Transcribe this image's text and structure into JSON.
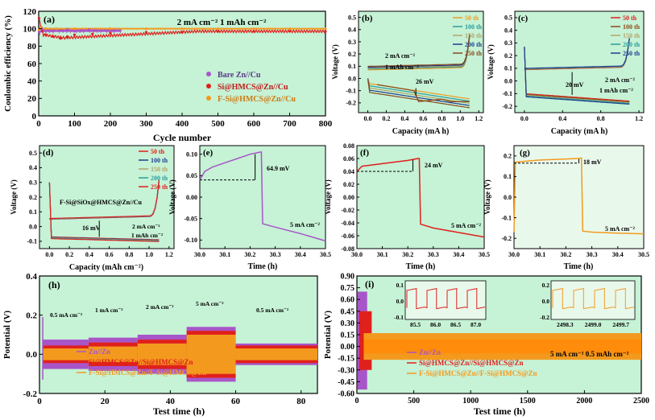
{
  "colors": {
    "bare": "#a855c9",
    "si": "#e0201c",
    "fsi": "#f39a1e",
    "teal": "#2a9d9b",
    "olive": "#b3a46a",
    "navy": "#1f3f8f",
    "brown": "#8a4a1a",
    "plot_bg": "#c6f2d6",
    "plot_bg2": "#e8f9ec"
  },
  "chart_data": [
    {
      "id": "a",
      "type": "line",
      "panel_label": "(a)",
      "title": "2 mA cm⁻²  1 mAh cm⁻²",
      "xlabel": "Cycle number",
      "ylabel": "Coulombic efficiency (%)",
      "xlim": [
        0,
        800
      ],
      "ylim": [
        0,
        120
      ],
      "xticks": [
        0,
        100,
        200,
        300,
        400,
        500,
        600,
        700,
        800
      ],
      "yticks": [
        0,
        20,
        40,
        60,
        80,
        100,
        120
      ],
      "series": [
        {
          "name": "Bare Zn//Cu",
          "color_key": "bare",
          "x": [
            1,
            5,
            10,
            20,
            40,
            60,
            80,
            100,
            120,
            140,
            160,
            200
          ],
          "y": [
            96,
            100,
            99,
            98,
            97,
            98,
            99,
            97,
            98,
            99,
            98,
            99
          ]
        },
        {
          "name": "Si@HMCS@Zn//Cu",
          "color_key": "si",
          "x": [
            1,
            10,
            20,
            40,
            60,
            80,
            100,
            150,
            200,
            300,
            400,
            500,
            600,
            700,
            800
          ],
          "y": [
            112,
            97,
            93,
            91,
            89,
            91,
            93,
            94,
            95,
            96,
            96,
            97,
            97,
            97,
            97
          ]
        },
        {
          "name": "F-Si@HMCS@Zn//Cu",
          "color_key": "fsi",
          "x": [
            1,
            5,
            20,
            50,
            100,
            200,
            300,
            400,
            500,
            600,
            700,
            800
          ],
          "y": [
            99,
            101,
            100,
            100,
            100,
            100,
            100,
            100,
            100,
            100,
            100,
            100
          ]
        }
      ]
    },
    {
      "id": "b",
      "type": "line",
      "panel_label": "(b)",
      "xlabel": "Capacity (mA h)",
      "ylabel": "Voltage (V)",
      "xlim": [
        -0.1,
        1.25
      ],
      "ylim": [
        -0.28,
        0.55
      ],
      "xticks": [
        0.0,
        0.2,
        0.4,
        0.6,
        0.8,
        1.0,
        1.2
      ],
      "yticks": [
        -0.2,
        -0.1,
        0.0,
        0.1,
        0.2,
        0.3,
        0.4,
        0.5
      ],
      "annotations": [
        "2 mA cm⁻²",
        "1 mAh cm⁻²",
        "26 mV"
      ],
      "legend": [
        "50 th",
        "100 th",
        "150 th",
        "200 th",
        "250 th"
      ],
      "legend_color_keys": [
        "fsi",
        "teal",
        "olive",
        "navy",
        "brown"
      ]
    },
    {
      "id": "c",
      "type": "line",
      "panel_label": "(c)",
      "xlabel": "Capacity (mA h)",
      "ylabel": "Voltage (V)",
      "xlim": [
        -0.1,
        1.25
      ],
      "ylim": [
        -0.25,
        0.55
      ],
      "xticks": [
        0.0,
        0.4,
        0.8,
        1.2
      ],
      "yticks": [
        -0.2,
        -0.1,
        0.0,
        0.1,
        0.2,
        0.3,
        0.4,
        0.5
      ],
      "annotations": [
        "20 mV",
        "2 mA cm⁻²",
        "1 mAh cm⁻²"
      ],
      "legend": [
        "50 th",
        "100 th",
        "150 th",
        "200 th",
        "250 th"
      ],
      "legend_color_keys": [
        "si",
        "brown",
        "olive",
        "teal",
        "navy"
      ]
    },
    {
      "id": "d",
      "type": "line",
      "panel_label": "(d)",
      "xlabel": "Capacity (mAh cm⁻²)",
      "ylabel": "Voltage (V)",
      "xlim": [
        -0.1,
        1.25
      ],
      "ylim": [
        -0.15,
        0.55
      ],
      "xticks": [
        0.0,
        0.2,
        0.4,
        0.6,
        0.8,
        1.0,
        1.2
      ],
      "yticks": [
        -0.1,
        0.0,
        0.1,
        0.2,
        0.3,
        0.4,
        0.5
      ],
      "annotations": [
        "F-Si@SiOx@HMCS@Zn//Cu",
        "16 mV",
        "2 mA cm⁻²",
        "1 mAh cm⁻²"
      ],
      "legend": [
        "50 th",
        "100 th",
        "150 th",
        "200 th",
        "250 th"
      ],
      "legend_color_keys": [
        "si",
        "navy",
        "olive",
        "teal",
        "si"
      ]
    },
    {
      "id": "e",
      "type": "line",
      "panel_label": "(e)",
      "xlabel": "Time (h)",
      "ylabel": "Voltage (V)",
      "xlim": [
        30.0,
        30.5
      ],
      "ylim": [
        -0.12,
        0.12
      ],
      "xticks": [
        30.0,
        30.1,
        30.2,
        30.3,
        30.4,
        30.5
      ],
      "yticks": [
        -0.1,
        -0.05,
        0.0,
        0.05,
        0.1
      ],
      "annotations": [
        "64.9 mV",
        "5 mA cm⁻²"
      ],
      "series": [
        {
          "name": "Zn//Zn",
          "color_key": "bare",
          "x": [
            30.0,
            30.02,
            30.05,
            30.1,
            30.15,
            30.2,
            30.24,
            30.245,
            30.25,
            30.3,
            30.4,
            30.5
          ],
          "y": [
            0.04,
            0.06,
            0.07,
            0.08,
            0.09,
            0.1,
            0.105,
            0.105,
            -0.062,
            -0.07,
            -0.085,
            -0.102
          ]
        }
      ]
    },
    {
      "id": "f",
      "type": "line",
      "panel_label": "(f)",
      "xlabel": "Time (h)",
      "ylabel": "Voltage (V)",
      "xlim": [
        30.0,
        30.5
      ],
      "ylim": [
        -0.08,
        0.08
      ],
      "xticks": [
        30.0,
        30.1,
        30.2,
        30.3,
        30.4,
        30.5
      ],
      "yticks": [
        -0.08,
        -0.06,
        -0.04,
        -0.02,
        0.0,
        0.02,
        0.04,
        0.06,
        0.08
      ],
      "annotations": [
        "24 mV",
        "5 mA cm⁻²"
      ],
      "series": [
        {
          "name": "Si@HMCS@Zn//Si@HMCS@Zn",
          "color_key": "si",
          "x": [
            30.0,
            30.02,
            30.1,
            30.2,
            30.24,
            30.245,
            30.25,
            30.3,
            30.4,
            30.5
          ],
          "y": [
            0.04,
            0.048,
            0.052,
            0.057,
            0.06,
            0.06,
            -0.042,
            -0.048,
            -0.055,
            -0.062
          ]
        }
      ]
    },
    {
      "id": "g",
      "type": "line",
      "panel_label": "(g)",
      "xlabel": "Time (h)",
      "ylabel": "Voltage (V)",
      "xlim": [
        30.0,
        30.5
      ],
      "ylim": [
        -0.25,
        0.25
      ],
      "xticks": [
        30.0,
        30.1,
        30.2,
        30.3,
        30.4,
        30.5
      ],
      "yticks": [
        -0.2,
        -0.1,
        0.0,
        0.1,
        0.2
      ],
      "annotations": [
        "18 mV",
        "5 mA cm⁻²"
      ],
      "series": [
        {
          "name": "F-Si@HMCS@Zn//F-Si@HMCS@Zn",
          "color_key": "fsi",
          "x": [
            30.0,
            30.005,
            30.05,
            30.1,
            30.2,
            30.25,
            30.26,
            30.265,
            30.3,
            30.4,
            30.5
          ],
          "y": [
            -0.17,
            0.17,
            0.175,
            0.18,
            0.185,
            0.188,
            0.19,
            -0.165,
            -0.17,
            -0.175,
            -0.178
          ]
        }
      ]
    },
    {
      "id": "h",
      "type": "line",
      "panel_label": "(h)",
      "xlabel": "Test time (h)",
      "ylabel": "Potential (V)",
      "xlim": [
        0,
        85
      ],
      "ylim": [
        -0.2,
        0.4
      ],
      "xticks": [
        0,
        20,
        40,
        60,
        80
      ],
      "yticks": [
        -0.2,
        0.0,
        0.2,
        0.4
      ],
      "annotations": [
        "0.5 mA cm⁻²",
        "1 mA cm⁻²",
        "2 mA cm⁻²",
        "5 mA cm⁻²",
        "0.5 mA cm⁻²"
      ],
      "legend": [
        "Zn//Zn",
        "Si@HMCS@Zn//Si@HMCS@Zn",
        "F-Si@HMCS@Zn//F-Si@HMCS@Zn"
      ],
      "legend_color_keys": [
        "bare",
        "si",
        "fsi"
      ],
      "bands": [
        {
          "color_key": "bare",
          "x": [
            0,
            15,
            30,
            45,
            60,
            85
          ],
          "amp": [
            0.075,
            0.085,
            0.1,
            0.14,
            0.055
          ]
        },
        {
          "color_key": "si",
          "x": [
            0,
            15,
            30,
            45,
            60,
            85
          ],
          "amp": [
            0.045,
            0.06,
            0.075,
            0.12,
            0.045
          ]
        },
        {
          "color_key": "fsi",
          "x": [
            0,
            15,
            30,
            45,
            60,
            85
          ],
          "amp": [
            0.03,
            0.04,
            0.055,
            0.1,
            0.03
          ]
        }
      ]
    },
    {
      "id": "i",
      "type": "line",
      "panel_label": "(i)",
      "xlabel": "Test time (h)",
      "ylabel": "Potential (V)",
      "xlim": [
        0,
        2500
      ],
      "ylim": [
        -0.6,
        0.9
      ],
      "xticks": [
        0,
        500,
        1000,
        1500,
        2000,
        2500
      ],
      "yticks": [
        -0.6,
        -0.45,
        -0.3,
        -0.15,
        0.0,
        0.15,
        0.3,
        0.45,
        0.6,
        0.75,
        0.9
      ],
      "annotations": [
        "5 mA cm⁻² 0.5 mAh cm⁻²"
      ],
      "legend": [
        "Zn//Zn",
        "Si@HMCS@Zn//Si@HMCS@Zn",
        "F-Si@HMCS@Zn//F-Si@HMCS@Zn"
      ],
      "legend_color_keys": [
        "bare",
        "si",
        "fsi"
      ],
      "insets": [
        {
          "xticks": [
            "85.5",
            "86.0",
            "86.5",
            "87.0"
          ],
          "yticks": [
            "0.1",
            "0.0",
            "-0.1"
          ],
          "color_key": "si"
        },
        {
          "xticks": [
            "2498.3",
            "2499.0",
            "2499.7"
          ],
          "yticks": [
            "0.2",
            "0.0",
            "-0.2"
          ],
          "color_key": "fsi"
        }
      ]
    }
  ],
  "legend_a": [
    "Bare Zn//Cu",
    "Si@HMCS@Zn//Cu",
    "F-Si@HMCS@Zn//Cu"
  ]
}
